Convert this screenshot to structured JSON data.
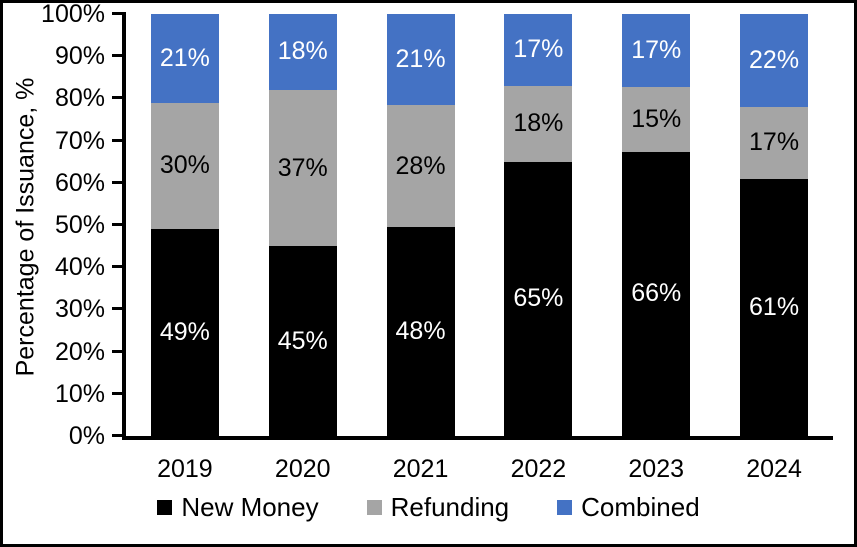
{
  "chart_data": {
    "type": "bar",
    "stacked": true,
    "title": "",
    "xlabel": "",
    "ylabel": "Percentage of Issuance, %",
    "categories": [
      "2019",
      "2020",
      "2021",
      "2022",
      "2023",
      "2024"
    ],
    "series": [
      {
        "name": "New Money",
        "color": "#000000",
        "label_color": "#ffffff",
        "values": [
          49,
          45,
          48,
          65,
          66,
          61
        ]
      },
      {
        "name": "Refunding",
        "color": "#A5A5A5",
        "label_color": "#000000",
        "values": [
          30,
          37,
          28,
          18,
          15,
          17
        ]
      },
      {
        "name": "Combined",
        "color": "#4472C4",
        "label_color": "#ffffff",
        "values": [
          21,
          18,
          21,
          17,
          17,
          22
        ]
      }
    ],
    "value_suffix": "%",
    "ylim": [
      0,
      100
    ],
    "ytick_step": 10,
    "ytick_labels": [
      "0%",
      "10%",
      "20%",
      "30%",
      "40%",
      "50%",
      "60%",
      "70%",
      "80%",
      "90%",
      "100%"
    ],
    "legend_position": "bottom",
    "grid": false,
    "axis_color": "#000000",
    "background_color": "#ffffff"
  }
}
